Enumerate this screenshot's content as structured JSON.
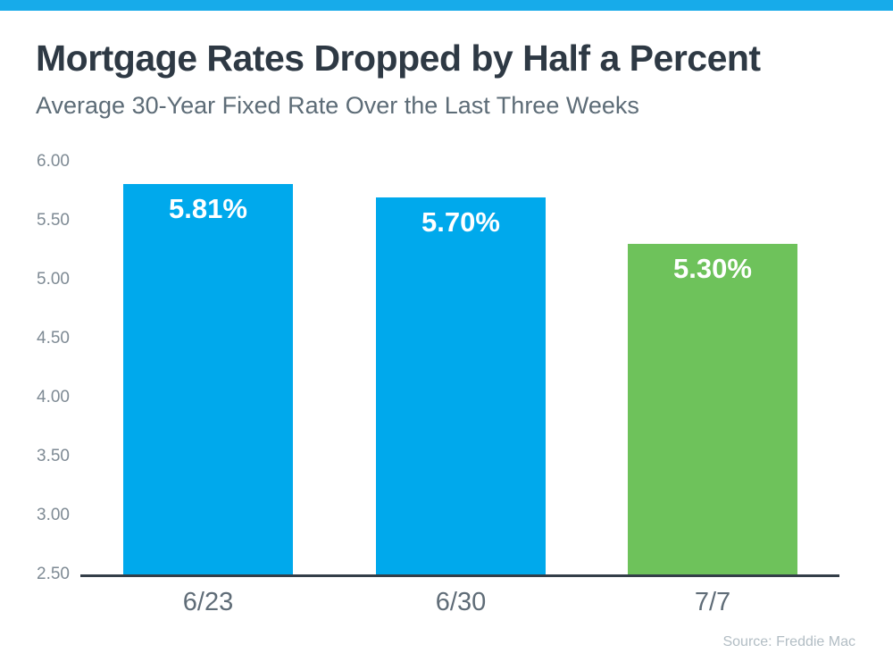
{
  "accent": {
    "top_bar_color": "#17ABEA"
  },
  "header": {
    "title": "Mortgage Rates Dropped by Half a Percent",
    "subtitle": "Average 30-Year Fixed Rate Over the Last Three Weeks"
  },
  "chart_data": {
    "type": "bar",
    "title": "Mortgage Rates Dropped by Half a Percent",
    "subtitle": "Average 30-Year Fixed Rate Over the Last Three Weeks",
    "categories": [
      "6/23",
      "6/30",
      "7/7"
    ],
    "values": [
      5.81,
      5.7,
      5.3
    ],
    "value_labels": [
      "5.81%",
      "5.70%",
      "5.30%"
    ],
    "bar_colors": [
      "#00A9EC",
      "#00A9EC",
      "#6EC25B"
    ],
    "ylim": [
      2.5,
      6.0
    ],
    "yticks": [
      "6.00",
      "5.50",
      "5.00",
      "4.50",
      "4.00",
      "3.50",
      "3.00",
      "2.50"
    ],
    "grid": false,
    "legend": null,
    "xlabel": "",
    "ylabel": "",
    "value_label_color": "#FFFFFF",
    "axis_line_color": "#333E48",
    "source": "Source: Freddie Mac"
  },
  "footer": {
    "source": "Source: Freddie Mac"
  }
}
